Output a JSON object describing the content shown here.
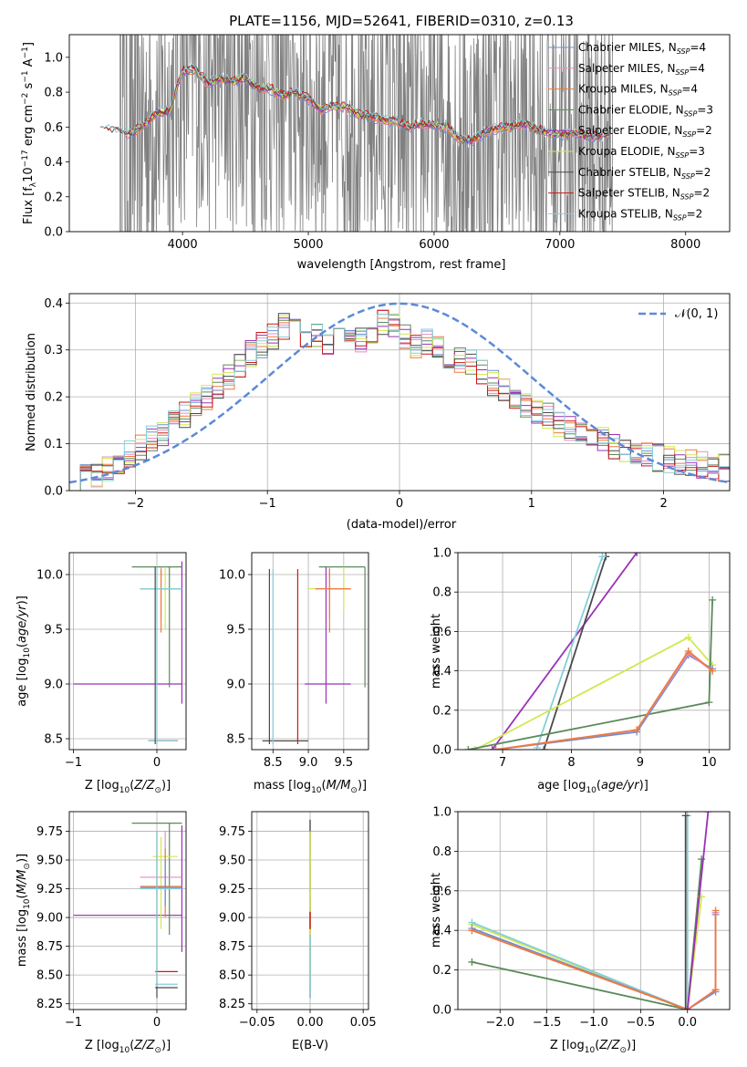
{
  "title": "PLATE=1156, MJD=52641, FIBERID=0310, z=0.13",
  "colors": {
    "gray": "#808080",
    "chabrier_miles": "#6d8fd6",
    "salpeter_miles": "#e88cc0",
    "kroupa_miles": "#ee7a3c",
    "chabrier_elodie": "#5a8a5a",
    "salpeter_elodie": "#9b30b8",
    "kroupa_elodie": "#d2e850",
    "chabrier_stelib": "#4a4a4a",
    "salpeter_stelib": "#cc1a1a",
    "kroupa_stelib": "#84cfd8",
    "gauss": "#5b8ad8"
  },
  "chart_data": [
    {
      "id": "spectrum",
      "type": "line",
      "title": "PLATE=1156, MJD=52641, FIBERID=0310, z=0.13",
      "xlabel": "wavelength [Angstrom, rest frame]",
      "ylabel": "Flux [f",
      "ylabel_rest": "10",
      "ylabel_units": " erg cm",
      "xlim": [
        3100,
        8350
      ],
      "ylim": [
        0,
        1.13
      ],
      "xticks": [
        "4000",
        "5000",
        "6000",
        "7000",
        "8000"
      ],
      "yticks": [
        "0.0",
        "0.2",
        "0.4",
        "0.6",
        "0.8",
        "1.0"
      ],
      "legend": [
        {
          "label": "Chabrier MILES, N",
          "n": "=4",
          "color": "chabrier_miles"
        },
        {
          "label": "Salpeter MILES, N",
          "n": "=4",
          "color": "salpeter_miles"
        },
        {
          "label": "Kroupa MILES, N",
          "n": "=4",
          "color": "kroupa_miles"
        },
        {
          "label": "Chabrier ELODIE, N",
          "n": "=3",
          "color": "chabrier_elodie"
        },
        {
          "label": "Salpeter ELODIE, N",
          "n": "=2",
          "color": "salpeter_elodie"
        },
        {
          "label": "Kroupa ELODIE, N",
          "n": "=3",
          "color": "kroupa_elodie"
        },
        {
          "label": "Chabrier STELIB, N",
          "n": "=2",
          "color": "chabrier_stelib"
        },
        {
          "label": "Salpeter STELIB, N",
          "n": "=2",
          "color": "salpeter_stelib"
        },
        {
          "label": "Kroupa STELIB, N",
          "n": "=2",
          "color": "kroupa_stelib"
        }
      ],
      "legend_sub": "SSP",
      "model_trend": [
        [
          3350,
          0.61
        ],
        [
          3400,
          0.58
        ],
        [
          3500,
          0.57
        ],
        [
          3600,
          0.56
        ],
        [
          3700,
          0.62
        ],
        [
          3800,
          0.68
        ],
        [
          3900,
          0.69
        ],
        [
          3950,
          0.82
        ],
        [
          4000,
          0.92
        ],
        [
          4100,
          0.93
        ],
        [
          4200,
          0.85
        ],
        [
          4300,
          0.88
        ],
        [
          4400,
          0.86
        ],
        [
          4500,
          0.88
        ],
        [
          4600,
          0.82
        ],
        [
          4700,
          0.82
        ],
        [
          4800,
          0.78
        ],
        [
          4900,
          0.8
        ],
        [
          5000,
          0.76
        ],
        [
          5100,
          0.7
        ],
        [
          5200,
          0.72
        ],
        [
          5300,
          0.71
        ],
        [
          5400,
          0.67
        ],
        [
          5500,
          0.66
        ],
        [
          5600,
          0.64
        ],
        [
          5700,
          0.63
        ],
        [
          5800,
          0.6
        ],
        [
          5900,
          0.62
        ],
        [
          6000,
          0.61
        ],
        [
          6100,
          0.6
        ],
        [
          6200,
          0.53
        ],
        [
          6300,
          0.52
        ],
        [
          6400,
          0.57
        ],
        [
          6500,
          0.59
        ],
        [
          6600,
          0.6
        ],
        [
          6700,
          0.62
        ],
        [
          6800,
          0.59
        ],
        [
          6900,
          0.57
        ],
        [
          7000,
          0.55
        ],
        [
          7100,
          0.57
        ],
        [
          7200,
          0.55
        ],
        [
          7300,
          0.55
        ],
        [
          7400,
          0.56
        ]
      ]
    },
    {
      "id": "residuals",
      "type": "line",
      "xlabel": "(data-model)/error",
      "ylabel": "Normed distribution",
      "xlim": [
        -2.5,
        2.5
      ],
      "ylim": [
        0,
        0.42
      ],
      "xticks": [
        "-2",
        "-1",
        "0",
        "1",
        "2"
      ],
      "yticks": [
        "0.0",
        "0.1",
        "0.2",
        "0.3",
        "0.4"
      ],
      "legend": "N(0,1)",
      "series_base": [
        0.02,
        0.03,
        0.035,
        0.045,
        0.06,
        0.08,
        0.095,
        0.11,
        0.125,
        0.14,
        0.16,
        0.18,
        0.2,
        0.22,
        0.24,
        0.265,
        0.29,
        0.31,
        0.33,
        0.35,
        0.34,
        0.32,
        0.33,
        0.31,
        0.32,
        0.33,
        0.325,
        0.34,
        0.36,
        0.35,
        0.33,
        0.31,
        0.32,
        0.3,
        0.29,
        0.28,
        0.27,
        0.25,
        0.23,
        0.22,
        0.2,
        0.18,
        0.17,
        0.16,
        0.145,
        0.13,
        0.12,
        0.115,
        0.105,
        0.095,
        0.085,
        0.08,
        0.075,
        0.07,
        0.065,
        0.06,
        0.06,
        0.055,
        0.05,
        0.05
      ]
    },
    {
      "id": "age-vs-Z",
      "type": "scatter",
      "xlabel": "Z [log",
      "ylabel": "age  [log",
      "xlim": [
        -1.05,
        0.35
      ],
      "ylim": [
        8.4,
        10.2
      ],
      "xticks": [
        "-1",
        "0"
      ],
      "yticks": [
        "8.5",
        "9.0",
        "9.5",
        "10.0"
      ]
    },
    {
      "id": "age-vs-mass",
      "type": "scatter",
      "xlabel": "mass [log",
      "xlim": [
        8.2,
        9.85
      ],
      "ylim": [
        8.4,
        10.2
      ],
      "xticks": [
        "8.5",
        "9.0",
        "9.5"
      ],
      "yticks": [
        "8.5",
        "9.0",
        "9.5",
        "10.0"
      ]
    },
    {
      "id": "weight-vs-age",
      "type": "line",
      "xlabel": "age  [log",
      "ylabel": "mass weight",
      "xlim": [
        6.35,
        10.3
      ],
      "ylim": [
        0,
        1.0
      ],
      "xticks": [
        "7",
        "8",
        "9",
        "10"
      ],
      "yticks": [
        "0.0",
        "0.2",
        "0.4",
        "0.6",
        "0.8",
        "1.0"
      ],
      "series": [
        {
          "color": "salpeter_elodie",
          "points": [
            [
              6.85,
              0.0
            ],
            [
              8.95,
              1.0
            ]
          ]
        },
        {
          "color": "chabrier_stelib",
          "points": [
            [
              7.6,
              0.0
            ],
            [
              8.5,
              0.98
            ]
          ]
        },
        {
          "color": "kroupa_stelib",
          "points": [
            [
              7.5,
              0.01
            ],
            [
              8.45,
              0.98
            ]
          ]
        },
        {
          "color": "kroupa_elodie",
          "points": [
            [
              6.6,
              0.0
            ],
            [
              9.7,
              0.57
            ],
            [
              10.05,
              0.43
            ]
          ]
        },
        {
          "color": "chabrier_elodie",
          "points": [
            [
              6.5,
              0.0
            ],
            [
              10.0,
              0.24
            ],
            [
              10.05,
              0.76
            ]
          ]
        },
        {
          "color": "chabrier_miles",
          "points": [
            [
              6.9,
              0.0
            ],
            [
              8.95,
              0.09
            ],
            [
              9.7,
              0.48
            ],
            [
              10.05,
              0.41
            ]
          ]
        },
        {
          "color": "salpeter_miles",
          "points": [
            [
              6.9,
              0.0
            ],
            [
              8.95,
              0.1
            ],
            [
              9.7,
              0.49
            ],
            [
              10.05,
              0.4
            ]
          ]
        },
        {
          "color": "kroupa_miles",
          "points": [
            [
              6.9,
              0.0
            ],
            [
              8.95,
              0.1
            ],
            [
              9.7,
              0.5
            ],
            [
              10.05,
              0.4
            ]
          ]
        }
      ]
    },
    {
      "id": "mass-vs-Z",
      "type": "scatter",
      "xlabel": "Z [log",
      "ylabel": "mass [log",
      "xlim": [
        -1.05,
        0.35
      ],
      "ylim": [
        8.2,
        9.92
      ],
      "xticks": [
        "-1",
        "0"
      ],
      "yticks": [
        "8.25",
        "8.50",
        "8.75",
        "9.00",
        "9.25",
        "9.50",
        "9.75"
      ]
    },
    {
      "id": "mass-vs-EBV",
      "type": "scatter",
      "xlabel": "E(B-V)",
      "xlim": [
        -0.055,
        0.055
      ],
      "ylim": [
        8.2,
        9.92
      ],
      "xticks": [
        "-0.05",
        "0.00",
        "0.05"
      ],
      "yticks": [
        "8.25",
        "8.50",
        "8.75",
        "9.00",
        "9.25",
        "9.50",
        "9.75"
      ]
    },
    {
      "id": "weight-vs-Z",
      "type": "line",
      "xlabel": "Z [log",
      "ylabel": "mass weight",
      "xlim": [
        -2.45,
        0.45
      ],
      "ylim": [
        0,
        1.0
      ],
      "xticks": [
        "-2.0",
        "-1.5",
        "-1.0",
        "-0.5",
        "0.0"
      ],
      "yticks": [
        "0.0",
        "0.2",
        "0.4",
        "0.6",
        "0.8",
        "1.0"
      ],
      "series": [
        {
          "color": "chabrier_elodie",
          "points": [
            [
              -2.3,
              0.24
            ],
            [
              0.0,
              0.0
            ],
            [
              0.15,
              0.76
            ]
          ]
        },
        {
          "color": "kroupa_elodie",
          "points": [
            [
              -2.3,
              0.43
            ],
            [
              0.0,
              0.0
            ],
            [
              0.15,
              0.57
            ]
          ]
        },
        {
          "color": "kroupa_stelib",
          "points": [
            [
              -2.3,
              0.44
            ],
            [
              0.0,
              0.0
            ],
            [
              0.0,
              0.98
            ]
          ]
        },
        {
          "color": "chabrier_miles",
          "points": [
            [
              -2.3,
              0.41
            ],
            [
              0.0,
              0.0
            ],
            [
              0.3,
              0.09
            ],
            [
              0.3,
              0.48
            ]
          ]
        },
        {
          "color": "salpeter_miles",
          "points": [
            [
              -2.3,
              0.4
            ],
            [
              0.0,
              0.0
            ],
            [
              0.3,
              0.1
            ],
            [
              0.3,
              0.49
            ]
          ]
        },
        {
          "color": "kroupa_miles",
          "points": [
            [
              -2.3,
              0.4
            ],
            [
              0.0,
              0.0
            ],
            [
              0.3,
              0.1
            ],
            [
              0.3,
              0.5
            ]
          ]
        },
        {
          "color": "salpeter_elodie",
          "points": [
            [
              0.0,
              0.0
            ],
            [
              0.22,
              1.0
            ]
          ]
        },
        {
          "color": "chabrier_stelib",
          "points": [
            [
              -0.02,
              0.0
            ],
            [
              -0.02,
              0.98
            ]
          ]
        }
      ]
    }
  ],
  "labels": {
    "zsun": "Z/Z",
    "mmsun": "M/M",
    "ageyr": "age/yr"
  }
}
